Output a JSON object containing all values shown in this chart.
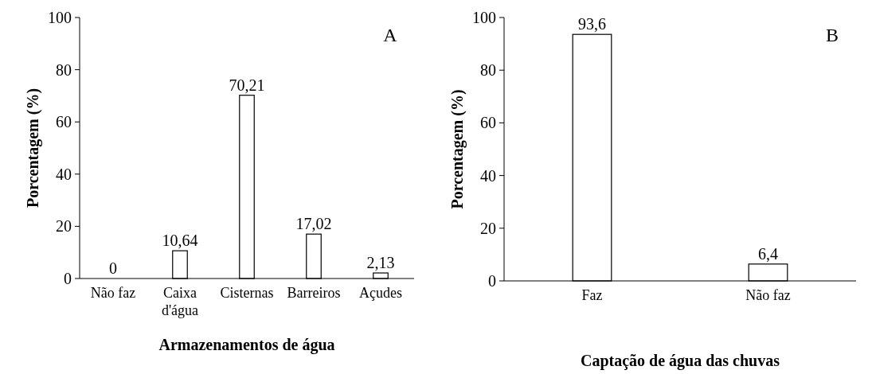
{
  "chart_data": [
    {
      "type": "bar",
      "categories": [
        "Não faz",
        "Caixa d'água",
        "Cisternas",
        "Barreiros",
        "Açudes"
      ],
      "values": [
        0,
        10.64,
        70.21,
        17.02,
        2.13
      ],
      "value_labels": [
        "0",
        "10,64",
        "70,21",
        "17,02",
        "2,13"
      ],
      "color": "#ffffff",
      "ylim": [
        0,
        100
      ],
      "yticks": [
        0,
        20,
        40,
        60,
        80,
        100
      ],
      "xlabel": "Armazenamentos de água",
      "ylabel": "Porcentagem (%)",
      "annotations": [
        "A"
      ]
    },
    {
      "type": "bar",
      "categories": [
        "Faz",
        "Não faz"
      ],
      "values": [
        93.6,
        6.4
      ],
      "value_labels": [
        "93,6",
        "6,4"
      ],
      "color": "#ffffff",
      "ylim": [
        0,
        100
      ],
      "yticks": [
        0,
        20,
        40,
        60,
        80,
        100
      ],
      "xlabel": "Captação de água das chuvas",
      "ylabel": "Porcentagem (%)",
      "annotations": [
        "B"
      ]
    }
  ]
}
